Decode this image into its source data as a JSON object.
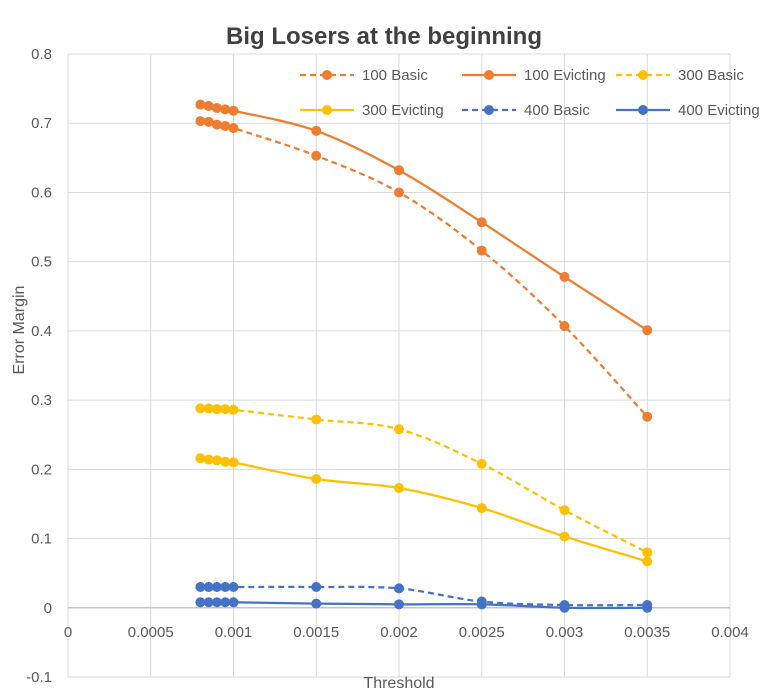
{
  "chart_data": {
    "type": "line",
    "title": "Big Losers at the beginning",
    "xlabel": "Threshold",
    "ylabel": "Error Margin",
    "xlim": [
      0,
      0.004
    ],
    "ylim": [
      -0.1,
      0.8
    ],
    "x_ticks": [
      0,
      0.0005,
      0.001,
      0.0015,
      0.002,
      0.0025,
      0.003,
      0.0035,
      0.004
    ],
    "x_tick_labels": [
      "0",
      "0.0005",
      "0.001",
      "0.0015",
      "0.002",
      "0.0025",
      "0.003",
      "0.0035",
      "0.004"
    ],
    "y_ticks": [
      -0.1,
      0,
      0.1,
      0.2,
      0.3,
      0.4,
      0.5,
      0.6,
      0.7,
      0.8
    ],
    "y_tick_labels": [
      "-0.1",
      "0",
      "0.1",
      "0.2",
      "0.3",
      "0.4",
      "0.5",
      "0.6",
      "0.7",
      "0.8"
    ],
    "grid": "vertical and horizontal",
    "legend_position": "top-right",
    "x": [
      0.0008,
      0.00085,
      0.0009,
      0.00095,
      0.001,
      0.0015,
      0.002,
      0.0025,
      0.003,
      0.0035
    ],
    "series": [
      {
        "name": "100 Basic",
        "color": "#ED7D31",
        "dash": "dashed",
        "values": [
          0.703,
          0.702,
          0.698,
          0.696,
          0.693,
          0.653,
          0.6,
          0.516,
          0.407,
          0.276
        ]
      },
      {
        "name": "100 Evicting",
        "color": "#ED7D31",
        "dash": "solid",
        "values": [
          0.727,
          0.725,
          0.722,
          0.72,
          0.718,
          0.689,
          0.632,
          0.557,
          0.478,
          0.401
        ]
      },
      {
        "name": "300 Basic",
        "color": "#FFC000",
        "dash": "dashed",
        "values": [
          0.288,
          0.288,
          0.287,
          0.287,
          0.286,
          0.272,
          0.258,
          0.208,
          0.141,
          0.08
        ]
      },
      {
        "name": "300 Evicting",
        "color": "#FFC000",
        "dash": "solid",
        "values": [
          0.216,
          0.214,
          0.213,
          0.211,
          0.21,
          0.186,
          0.173,
          0.144,
          0.103,
          0.067
        ]
      },
      {
        "name": "400 Basic",
        "color": "#4472C4",
        "dash": "dashed",
        "values": [
          0.03,
          0.03,
          0.03,
          0.03,
          0.03,
          0.03,
          0.028,
          0.009,
          0.004,
          0.004
        ]
      },
      {
        "name": "400 Evicting",
        "color": "#4472C4",
        "dash": "solid",
        "values": [
          0.008,
          0.008,
          0.008,
          0.008,
          0.008,
          0.006,
          0.005,
          0.005,
          0.0,
          0.0
        ]
      }
    ]
  }
}
